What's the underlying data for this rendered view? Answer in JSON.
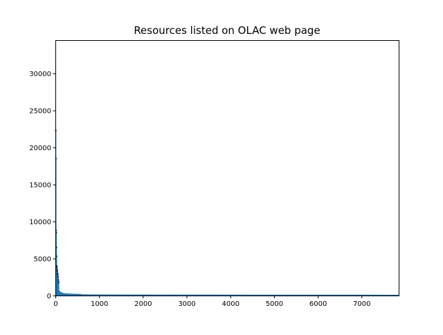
{
  "chart_data": {
    "type": "bar",
    "title": "Resources listed on OLAC web page",
    "xlabel": "",
    "ylabel": "",
    "xlim": [
      0,
      7850
    ],
    "ylim": [
      0,
      34500
    ],
    "xticks": [
      0,
      1000,
      2000,
      3000,
      4000,
      5000,
      6000,
      7000
    ],
    "yticks": [
      0,
      5000,
      10000,
      15000,
      20000,
      25000,
      30000
    ],
    "grid": false,
    "legend": "none",
    "bar_color": "#1f77b4",
    "spike_values": [
      {
        "x": 0,
        "y": 22300
      },
      {
        "x": 1,
        "y": 18500
      },
      {
        "x": 2,
        "y": 8800
      },
      {
        "x": 3,
        "y": 8500
      },
      {
        "x": 4,
        "y": 6500
      },
      {
        "x": 5,
        "y": 5300
      },
      {
        "x": 7,
        "y": 4000
      },
      {
        "x": 9,
        "y": 3800
      },
      {
        "x": 12,
        "y": 3500
      },
      {
        "x": 15,
        "y": 3300
      },
      {
        "x": 18,
        "y": 3000
      },
      {
        "x": 22,
        "y": 2800
      },
      {
        "x": 26,
        "y": 2500
      },
      {
        "x": 30,
        "y": 2100
      },
      {
        "x": 35,
        "y": 1800
      }
    ],
    "decay_curve": [
      {
        "x": 40,
        "y": 1600
      },
      {
        "x": 50,
        "y": 1200
      },
      {
        "x": 60,
        "y": 950
      },
      {
        "x": 75,
        "y": 750
      },
      {
        "x": 90,
        "y": 600
      },
      {
        "x": 110,
        "y": 480
      },
      {
        "x": 130,
        "y": 400
      },
      {
        "x": 160,
        "y": 330
      },
      {
        "x": 200,
        "y": 280
      },
      {
        "x": 260,
        "y": 240
      },
      {
        "x": 350,
        "y": 210
      },
      {
        "x": 450,
        "y": 190
      },
      {
        "x": 580,
        "y": 170
      },
      {
        "x": 600,
        "y": 130
      },
      {
        "x": 800,
        "y": 110
      },
      {
        "x": 1500,
        "y": 90
      },
      {
        "x": 3000,
        "y": 80
      },
      {
        "x": 5000,
        "y": 70
      },
      {
        "x": 7000,
        "y": 65
      },
      {
        "x": 7850,
        "y": 60
      }
    ]
  }
}
